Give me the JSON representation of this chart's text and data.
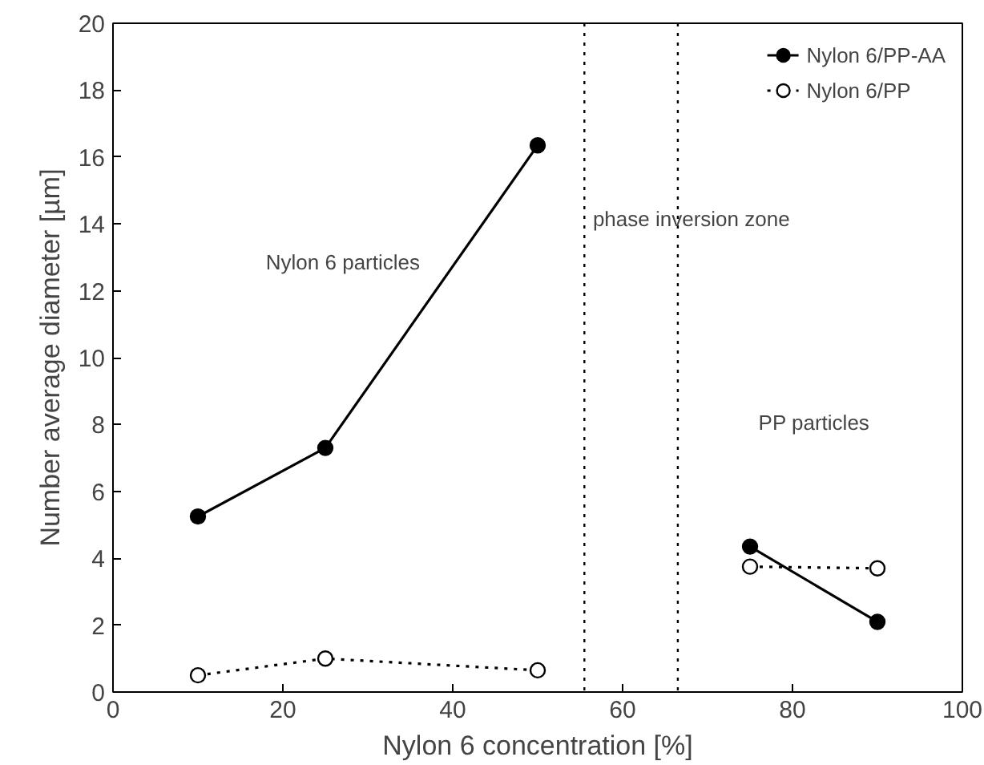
{
  "chart_data": {
    "type": "line",
    "xlabel": "Nylon 6 concentration [%]",
    "ylabel": "Number average diameter [µm]",
    "series": [
      {
        "name": "Nylon 6/PP-AA",
        "color": "#000000",
        "line_style": "solid",
        "x": [
          10,
          25,
          50
        ],
        "values": [
          5.25,
          7.3,
          16.35
        ]
      },
      {
        "name": "Nylon 6/PP",
        "color": "#000000",
        "line_style": "dotted",
        "x": [
          10,
          25,
          50
        ],
        "values": [
          0.5,
          1.0,
          0.65
        ]
      },
      {
        "color": "#000000",
        "line_style": "solid",
        "x": [
          75,
          90
        ],
        "values": [
          4.35,
          2.1
        ]
      },
      {
        "color": "#000000",
        "line_style": "dotted",
        "x": [
          75,
          90
        ],
        "values": [
          3.75,
          3.7
        ]
      }
    ],
    "xlim": [
      0,
      100
    ],
    "ylim": [
      0,
      20
    ],
    "xticks": [
      0,
      20,
      40,
      60,
      80,
      100
    ],
    "yticks": [
      0,
      2,
      4,
      6,
      8,
      10,
      12,
      14,
      16,
      18,
      20
    ],
    "ref_lines": [
      {
        "axis": "x",
        "value": 55.5,
        "line_style": "dotted"
      },
      {
        "axis": "x",
        "value": 66.5,
        "line_style": "dotted"
      }
    ],
    "annotations": [
      "Nylon 6 particles",
      "phase inversion zone",
      "PP particles"
    ],
    "marker": "circle",
    "grid": false,
    "legend": "top right"
  }
}
